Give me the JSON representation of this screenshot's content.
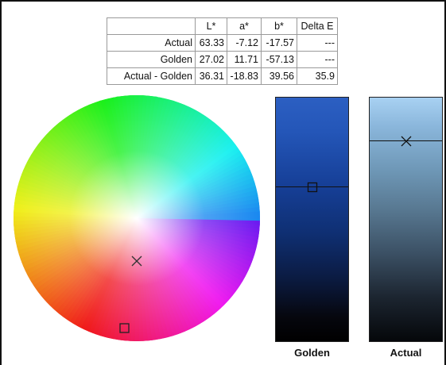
{
  "table": {
    "headers": [
      "",
      "L*",
      "a*",
      "b*",
      "Delta E"
    ],
    "rows": [
      {
        "label": "Actual",
        "L": "63.33",
        "a": "-7.12",
        "b": "-17.57",
        "dE": "---"
      },
      {
        "label": "Golden",
        "L": "27.02",
        "a": "11.71",
        "b": "-57.13",
        "dE": "---"
      },
      {
        "label": "Actual - Golden",
        "L": "36.31",
        "a": "-18.83",
        "b": "39.56",
        "dE": "35.9"
      }
    ]
  },
  "bars": {
    "golden": {
      "label": "Golden",
      "marker": "square-marker"
    },
    "actual": {
      "label": "Actual",
      "marker": "x-marker"
    }
  },
  "wheel": {
    "actual_marker": "x-marker",
    "golden_marker": "square-marker"
  }
}
